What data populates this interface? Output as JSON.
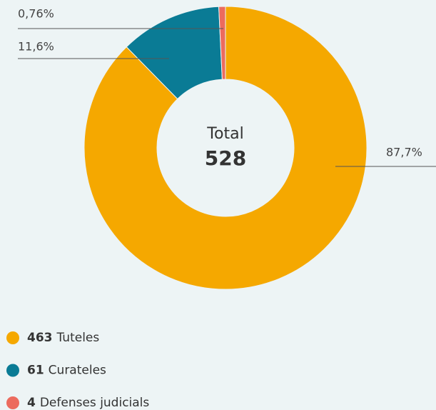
{
  "chart_data": {
    "type": "pie",
    "donut": true,
    "center_label": "Total",
    "total": 528,
    "categories": [
      "Tuteles",
      "Curateles",
      "Defenses judicials"
    ],
    "counts": [
      463,
      61,
      4
    ],
    "values": [
      87.7,
      11.6,
      0.76
    ],
    "value_labels": [
      "87,7%",
      "11,6%",
      "0,76%"
    ],
    "colors": [
      "#f5a800",
      "#0a7b95",
      "#ec6b5e"
    ]
  }
}
